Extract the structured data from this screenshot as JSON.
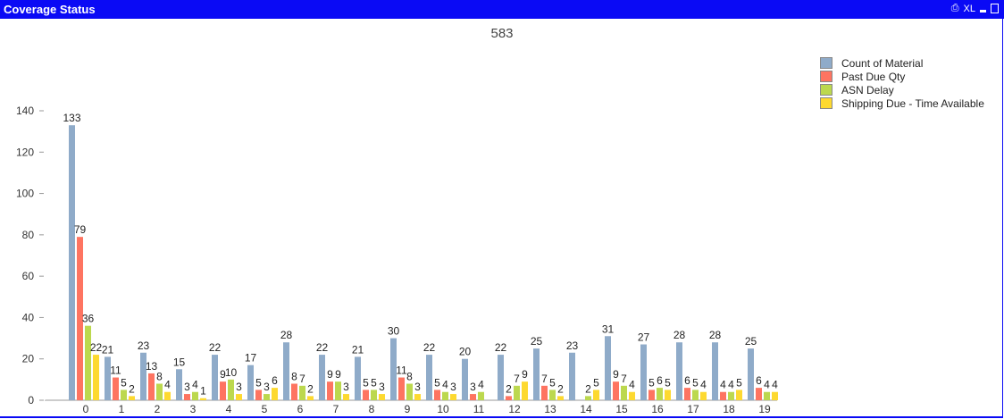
{
  "window": {
    "title": "Coverage Status",
    "controls": [
      "print-icon",
      "XL",
      "minimize-icon",
      "maximize-icon"
    ],
    "xl_label": "XL",
    "accent": "#0a0af5"
  },
  "chart_data": {
    "type": "bar",
    "title": "583",
    "categories": [
      "0",
      "1",
      "2",
      "3",
      "4",
      "5",
      "6",
      "7",
      "8",
      "9",
      "10",
      "11",
      "12",
      "13",
      "14",
      "15",
      "16",
      "17",
      "18",
      "19"
    ],
    "series": [
      {
        "name": "Count of Material",
        "color": "#8fabc9",
        "values": [
          133,
          21,
          23,
          15,
          22,
          17,
          28,
          22,
          21,
          30,
          22,
          20,
          22,
          25,
          23,
          31,
          27,
          28,
          28,
          25
        ]
      },
      {
        "name": "Past Due Qty",
        "color": "#fe7461",
        "values": [
          79,
          11,
          13,
          3,
          9,
          5,
          8,
          9,
          5,
          11,
          5,
          3,
          2,
          7,
          null,
          9,
          5,
          6,
          4,
          6
        ]
      },
      {
        "name": "ASN Delay",
        "color": "#bcd84e",
        "values": [
          36,
          5,
          8,
          4,
          10,
          3,
          7,
          9,
          5,
          8,
          4,
          4,
          7,
          5,
          2,
          7,
          6,
          5,
          4,
          4
        ]
      },
      {
        "name": "Shipping Due - Time Available",
        "color": "#fdd930",
        "values": [
          22,
          2,
          4,
          1,
          3,
          6,
          2,
          3,
          3,
          3,
          3,
          null,
          9,
          2,
          5,
          4,
          5,
          4,
          5,
          4
        ]
      }
    ],
    "yticks": [
      0,
      20,
      40,
      60,
      80,
      100,
      120,
      140
    ],
    "ylim": [
      0,
      140
    ],
    "grid": false,
    "legend_position": "top-right"
  }
}
